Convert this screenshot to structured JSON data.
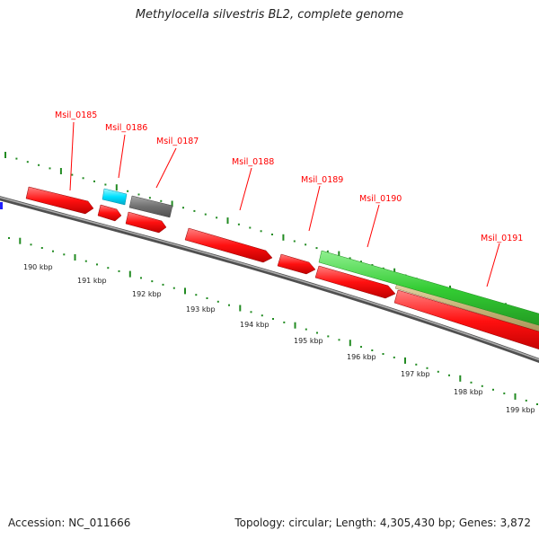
{
  "title": "Methylocella silvestris BL2, complete genome",
  "footer": {
    "accession": "Accession: NC_011666",
    "summary": "Topology: circular; Length: 4,305,430 bp; Genes: 3,872"
  },
  "colors": {
    "background": "#ffffff",
    "backbone": "#808080",
    "gene_red": "#ff0000",
    "gene_cyan": "#00e0ff",
    "gene_gray": "#707070",
    "gene_green": "#33cc33",
    "gene_tan": "#c8b47a",
    "label": "#ff0000",
    "tick": "#228b22"
  },
  "genes": [
    {
      "id": "Msil_0185",
      "color": "red"
    },
    {
      "id": "Msil_0186",
      "color": "cyan"
    },
    {
      "id": "Msil_0187",
      "color": "gray"
    },
    {
      "id": "Msil_0188",
      "color": "red"
    },
    {
      "id": "Msil_0189",
      "color": "red"
    },
    {
      "id": "Msil_0190",
      "color": "red"
    },
    {
      "id": "Msil_0191",
      "color": "red"
    }
  ],
  "ticks": [
    "190 kbp",
    "191 kbp",
    "192 kbp",
    "193 kbp",
    "194 kbp",
    "195 kbp",
    "196 kbp",
    "197 kbp",
    "198 kbp",
    "199 kbp"
  ]
}
